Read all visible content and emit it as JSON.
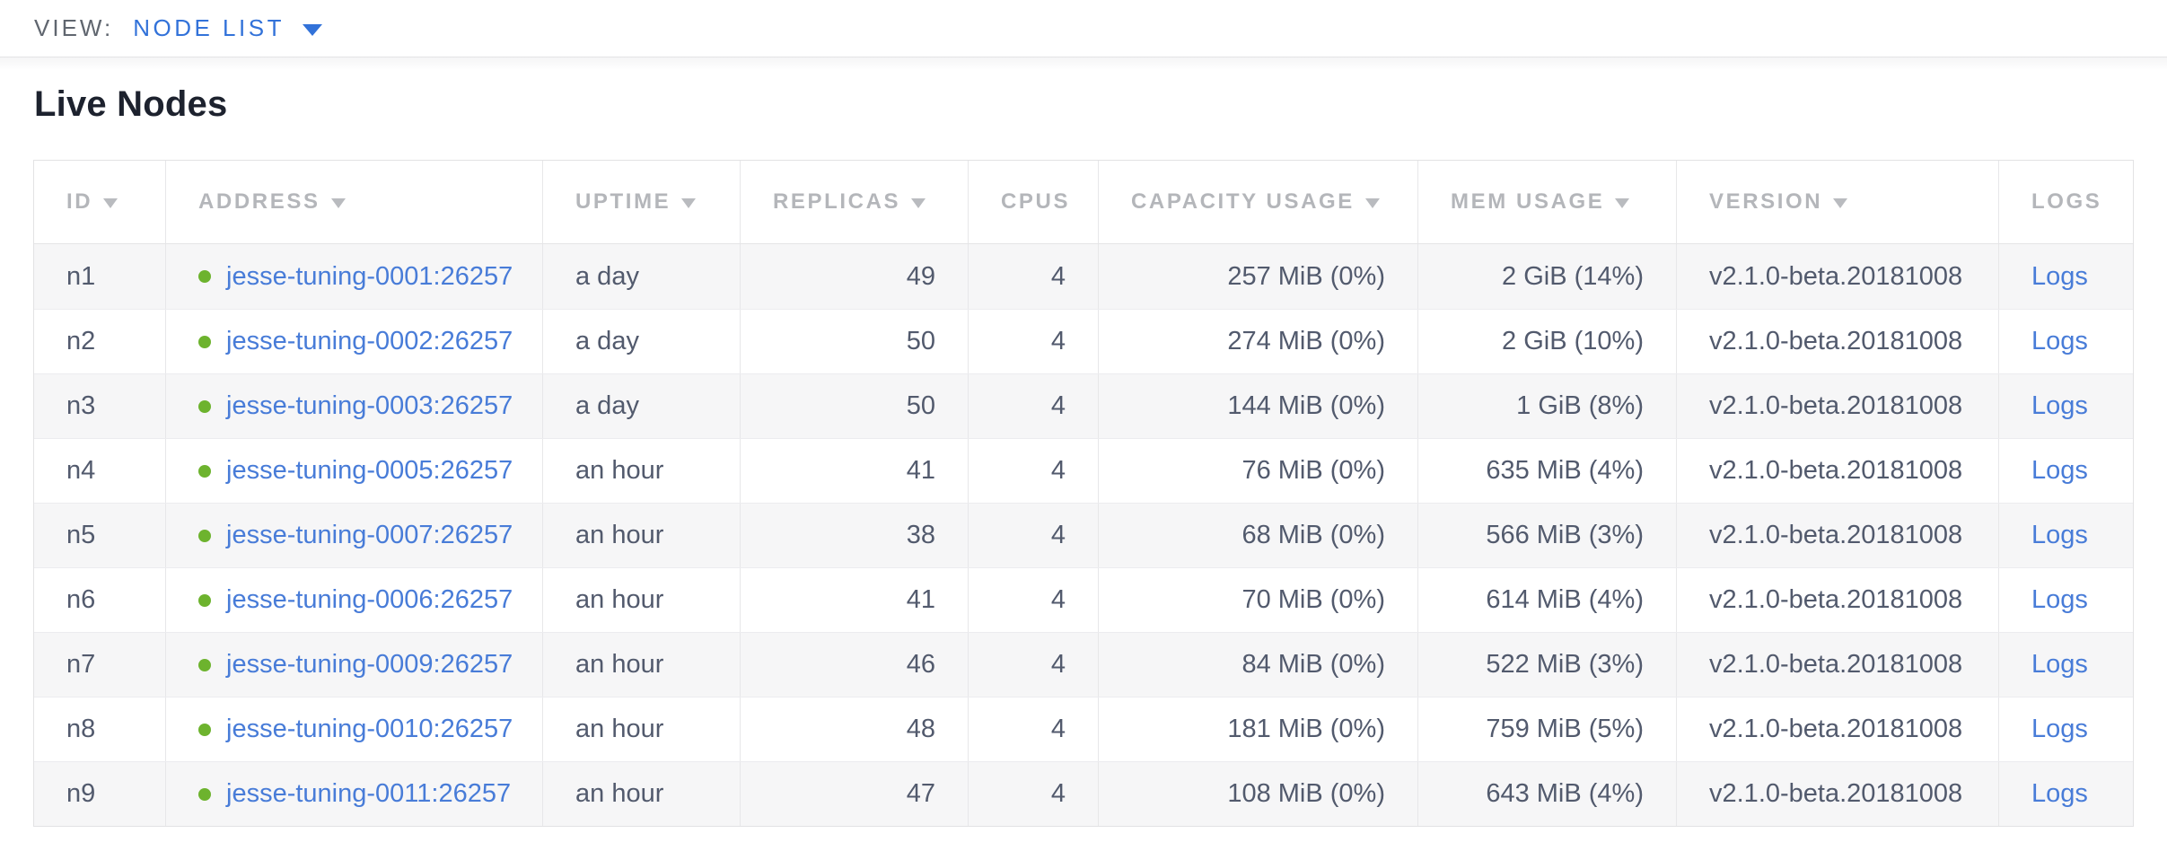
{
  "view_bar": {
    "label": "VIEW:",
    "selected": "NODE LIST"
  },
  "page": {
    "title": "Live Nodes"
  },
  "colors": {
    "link_blue": "#487cd8",
    "healthy_green": "#6db32e",
    "header_gray": "#b4b6ba",
    "text_slate": "#525a6d"
  },
  "table": {
    "columns": [
      {
        "label": "ID",
        "sortable": true
      },
      {
        "label": "ADDRESS",
        "sortable": true
      },
      {
        "label": "UPTIME",
        "sortable": true
      },
      {
        "label": "REPLICAS",
        "sortable": true
      },
      {
        "label": "CPUS",
        "sortable": false
      },
      {
        "label": "CAPACITY USAGE",
        "sortable": true
      },
      {
        "label": "MEM USAGE",
        "sortable": true
      },
      {
        "label": "VERSION",
        "sortable": true
      },
      {
        "label": "LOGS",
        "sortable": false
      }
    ],
    "rows": [
      {
        "id": "n1",
        "status": "healthy",
        "address": "jesse-tuning-0001:26257",
        "uptime": "a day",
        "replicas": "49",
        "cpus": "4",
        "capacity_usage": "257 MiB (0%)",
        "mem_usage": "2 GiB (14%)",
        "version": "v2.1.0-beta.20181008",
        "logs": "Logs"
      },
      {
        "id": "n2",
        "status": "healthy",
        "address": "jesse-tuning-0002:26257",
        "uptime": "a day",
        "replicas": "50",
        "cpus": "4",
        "capacity_usage": "274 MiB (0%)",
        "mem_usage": "2 GiB (10%)",
        "version": "v2.1.0-beta.20181008",
        "logs": "Logs"
      },
      {
        "id": "n3",
        "status": "healthy",
        "address": "jesse-tuning-0003:26257",
        "uptime": "a day",
        "replicas": "50",
        "cpus": "4",
        "capacity_usage": "144 MiB (0%)",
        "mem_usage": "1 GiB (8%)",
        "version": "v2.1.0-beta.20181008",
        "logs": "Logs"
      },
      {
        "id": "n4",
        "status": "healthy",
        "address": "jesse-tuning-0005:26257",
        "uptime": "an hour",
        "replicas": "41",
        "cpus": "4",
        "capacity_usage": "76 MiB (0%)",
        "mem_usage": "635 MiB (4%)",
        "version": "v2.1.0-beta.20181008",
        "logs": "Logs"
      },
      {
        "id": "n5",
        "status": "healthy",
        "address": "jesse-tuning-0007:26257",
        "uptime": "an hour",
        "replicas": "38",
        "cpus": "4",
        "capacity_usage": "68 MiB (0%)",
        "mem_usage": "566 MiB (3%)",
        "version": "v2.1.0-beta.20181008",
        "logs": "Logs"
      },
      {
        "id": "n6",
        "status": "healthy",
        "address": "jesse-tuning-0006:26257",
        "uptime": "an hour",
        "replicas": "41",
        "cpus": "4",
        "capacity_usage": "70 MiB (0%)",
        "mem_usage": "614 MiB (4%)",
        "version": "v2.1.0-beta.20181008",
        "logs": "Logs"
      },
      {
        "id": "n7",
        "status": "healthy",
        "address": "jesse-tuning-0009:26257",
        "uptime": "an hour",
        "replicas": "46",
        "cpus": "4",
        "capacity_usage": "84 MiB (0%)",
        "mem_usage": "522 MiB (3%)",
        "version": "v2.1.0-beta.20181008",
        "logs": "Logs"
      },
      {
        "id": "n8",
        "status": "healthy",
        "address": "jesse-tuning-0010:26257",
        "uptime": "an hour",
        "replicas": "48",
        "cpus": "4",
        "capacity_usage": "181 MiB (0%)",
        "mem_usage": "759 MiB (5%)",
        "version": "v2.1.0-beta.20181008",
        "logs": "Logs"
      },
      {
        "id": "n9",
        "status": "healthy",
        "address": "jesse-tuning-0011:26257",
        "uptime": "an hour",
        "replicas": "47",
        "cpus": "4",
        "capacity_usage": "108 MiB (0%)",
        "mem_usage": "643 MiB (4%)",
        "version": "v2.1.0-beta.20181008",
        "logs": "Logs"
      }
    ]
  }
}
